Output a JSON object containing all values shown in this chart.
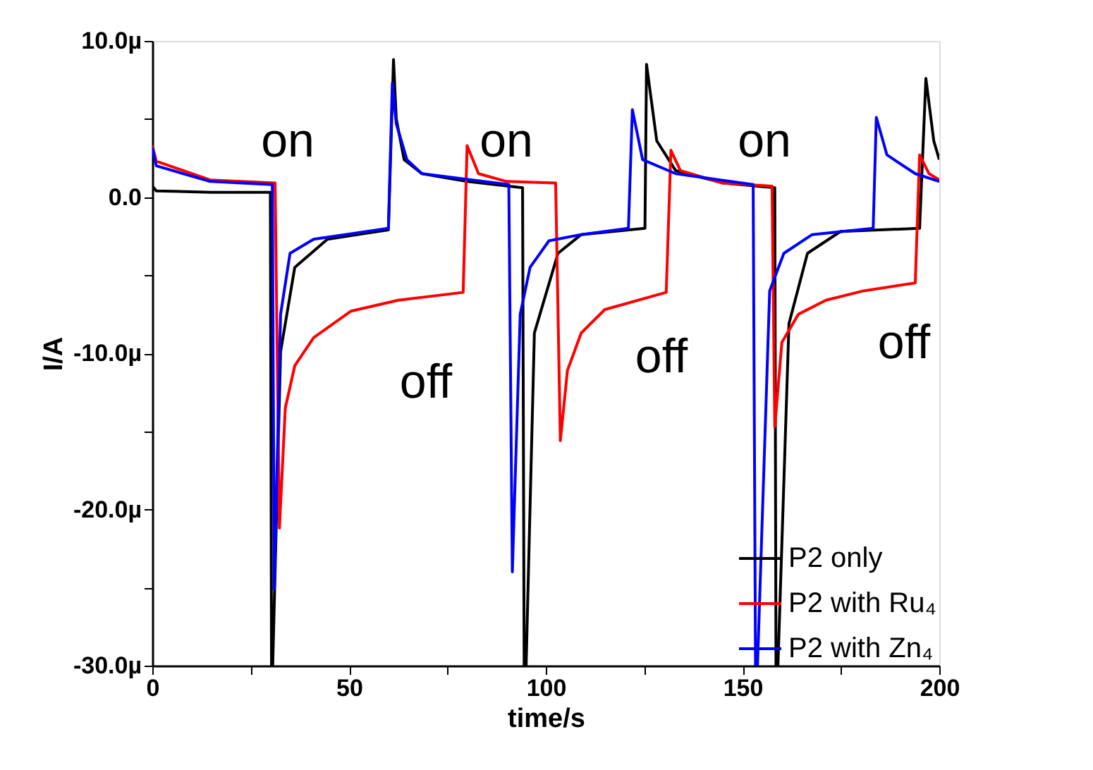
{
  "chart_data": {
    "type": "line",
    "xlabel": "time/s",
    "ylabel": "I/A",
    "xlim": [
      0,
      200
    ],
    "ylim": [
      -30,
      10
    ],
    "xticks": [
      0,
      {
        "value": 25,
        "label": null
      },
      50,
      {
        "value": 75,
        "label": null
      },
      100,
      {
        "value": 125,
        "label": null
      },
      150,
      {
        "value": 175,
        "label": null
      },
      200
    ],
    "yticks": [
      {
        "value": -30,
        "label": "-30.0µ"
      },
      {
        "value": -25,
        "label": null
      },
      {
        "value": -20,
        "label": "-20.0µ"
      },
      {
        "value": -15,
        "label": null
      },
      {
        "value": -10,
        "label": "-10.0µ"
      },
      {
        "value": -5,
        "label": null
      },
      {
        "value": 0,
        "label": "0.0"
      },
      {
        "value": 5,
        "label": null
      },
      {
        "value": 10,
        "label": "10.0µ"
      }
    ],
    "grid": false,
    "legend": "bottom right",
    "line_style": "solid",
    "marker": "none",
    "series": [
      {
        "name": "P2 only",
        "color": "#000000",
        "x": [
          0,
          1,
          15,
          30,
          30.3,
          30.6,
          32.6,
          36.2,
          44.5,
          60,
          61.3,
          62,
          64,
          68.5,
          80,
          94.1,
          94.5,
          95,
          97.1,
          103.1,
          109,
          125.2,
          125.6,
          128.2,
          133,
          145,
          158.2,
          158.5,
          159,
          161.8,
          166.5,
          174.9,
          195,
          196.6,
          198.6,
          200
        ],
        "values": [
          0.7,
          0.4,
          0.3,
          0.3,
          -30,
          -30,
          -9.9,
          -4.5,
          -2.7,
          -2.1,
          8.8,
          5,
          2.4,
          1.5,
          1,
          0.6,
          -30,
          -30,
          -8.7,
          -3.6,
          -2.4,
          -2,
          8.5,
          3.6,
          1.7,
          0.9,
          0.6,
          -30,
          -30,
          -8.1,
          -3.6,
          -2.2,
          -2,
          7.6,
          3.6,
          2.4
        ]
      },
      {
        "name": "P2 with Ru₄",
        "color": "#ff0000",
        "x": [
          0,
          1,
          14.7,
          31.2,
          32.3,
          33.8,
          36.2,
          41,
          50.5,
          62.5,
          79,
          80,
          82.9,
          90,
          102.5,
          103.7,
          105.5,
          109,
          115,
          130.6,
          131.8,
          134.2,
          145,
          157.5,
          158.2,
          160,
          164.2,
          171.2,
          180.8,
          193.9,
          195,
          197.4,
          200
        ],
        "values": [
          3.3,
          2.3,
          1.1,
          0.9,
          -21.2,
          -13.5,
          -10.8,
          -9,
          -7.3,
          -6.6,
          -6.1,
          3.3,
          1.5,
          1,
          0.9,
          -15.6,
          -11.1,
          -8.7,
          -7.2,
          -6.1,
          3,
          1.7,
          0.9,
          0.7,
          -14.7,
          -9.3,
          -7.5,
          -6.6,
          -6,
          -5.5,
          2.7,
          1.5,
          1.1
        ]
      },
      {
        "name": "P2 with Zn₄",
        "color": "#0000ff",
        "x": [
          0,
          1,
          14.7,
          30.5,
          31,
          32.6,
          35,
          41,
          60,
          61,
          62,
          64.7,
          68.5,
          90.6,
          91.5,
          93.5,
          96,
          100.8,
          109,
          121,
          122,
          124.6,
          133,
          152.7,
          153.3,
          153.8,
          156.9,
          160.5,
          167.7,
          183.2,
          184,
          186.7,
          193.9,
          200
        ],
        "values": [
          3.2,
          2,
          1,
          0.8,
          -25.1,
          -7.5,
          -3.6,
          -2.7,
          -2,
          7.3,
          4.7,
          2.4,
          1.5,
          0.8,
          -24,
          -7.5,
          -4.5,
          -2.8,
          -2.4,
          -2,
          5.6,
          2.4,
          1.5,
          0.8,
          -30,
          -30,
          -6,
          -3.6,
          -2.4,
          -2,
          5.1,
          2.7,
          1.5,
          1
        ]
      }
    ],
    "annotations": [
      "on",
      "on",
      "on",
      "off",
      "off",
      "off"
    ]
  }
}
